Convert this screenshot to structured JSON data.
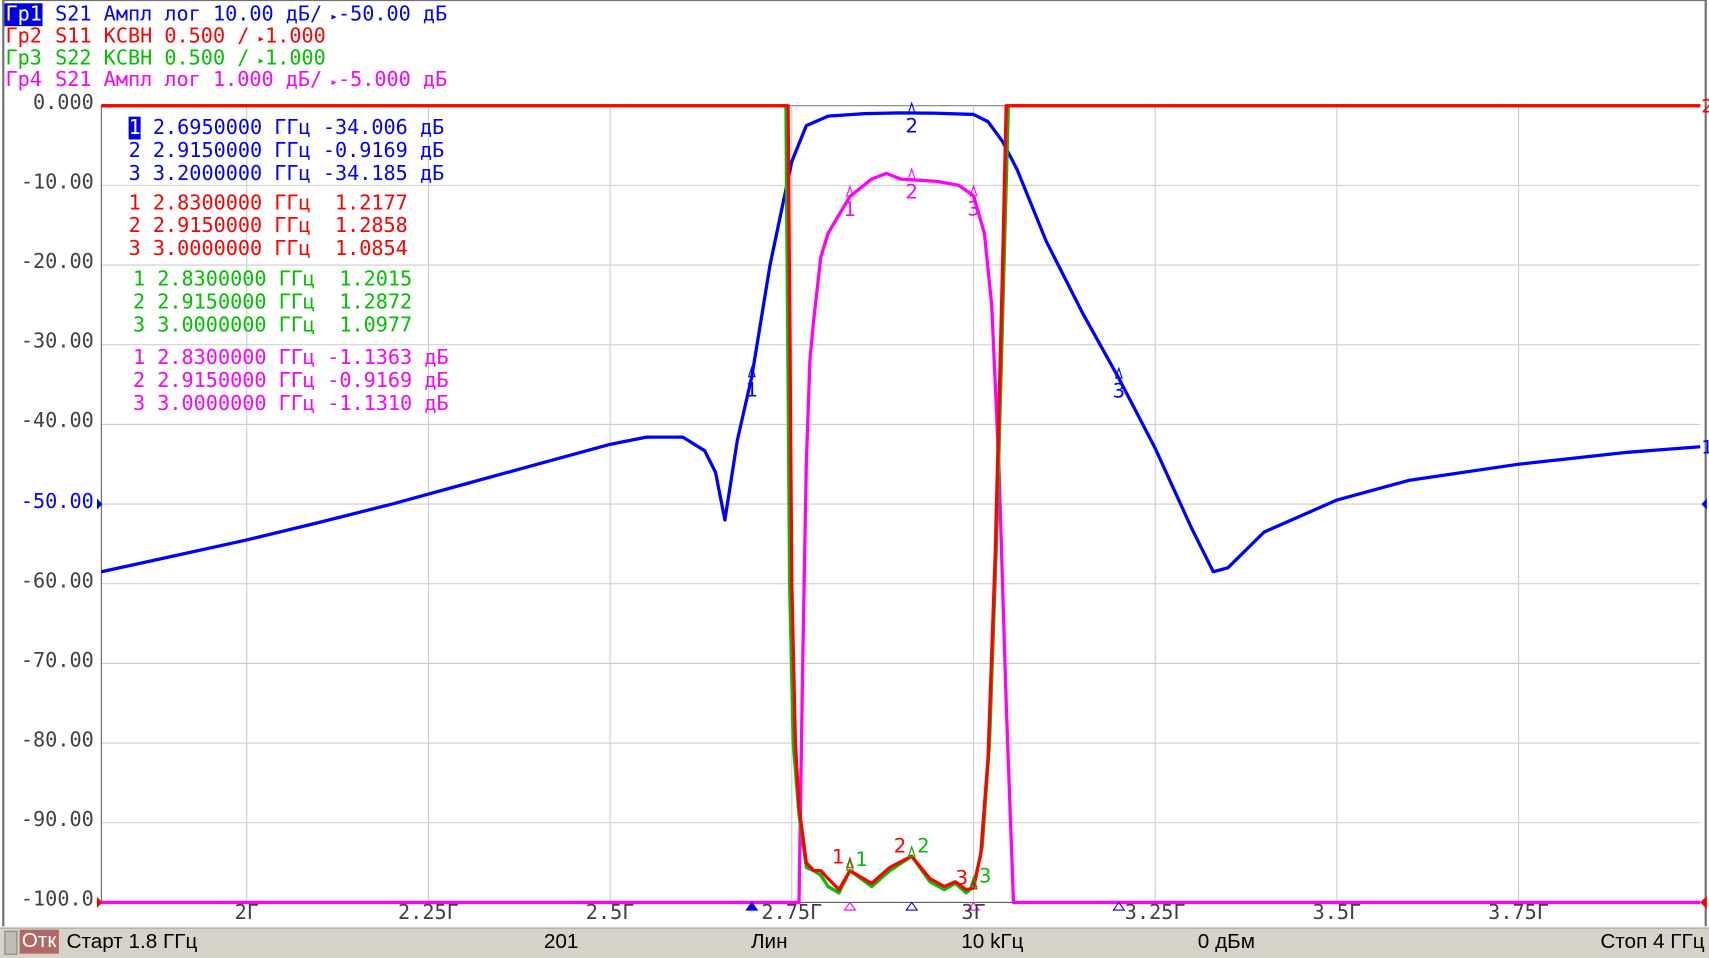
{
  "header": {
    "traces": [
      {
        "tag": "Гр1",
        "param": "S21",
        "format": "Ампл лог",
        "scale": "10.00 дБ/",
        "ref": "-50.00 дБ",
        "color": "#0000ff",
        "active": true
      },
      {
        "tag": "Гр2",
        "param": "S11",
        "format": "КСВН",
        "scale": "0.500 /",
        "ref": "1.000",
        "color": "#ff0000",
        "active": false
      },
      {
        "tag": "Гр3",
        "param": "S22",
        "format": "КСВН",
        "scale": "0.500 /",
        "ref": "1.000",
        "color": "#00c000",
        "active": false
      },
      {
        "tag": "Гр4",
        "param": "S21",
        "format": "Ампл лог",
        "scale": "1.000 дБ/",
        "ref": "-5.000 дБ",
        "color": "#ff00ff",
        "active": false
      }
    ]
  },
  "markers": {
    "tables": [
      {
        "color": "#0000ff",
        "rows": [
          {
            "n": "1",
            "freq": "2.6950000 ГГц",
            "val": "-34.006 дБ",
            "active": true
          },
          {
            "n": "2",
            "freq": "2.9150000 ГГц",
            "val": "-0.9169 дБ"
          },
          {
            "n": "3",
            "freq": "3.2000000 ГГц",
            "val": "-34.185 дБ"
          }
        ]
      },
      {
        "color": "#ff0000",
        "rows": [
          {
            "n": "1",
            "freq": "2.8300000 ГГц",
            "val": " 1.2177"
          },
          {
            "n": "2",
            "freq": "2.9150000 ГГц",
            "val": " 1.2858"
          },
          {
            "n": "3",
            "freq": "3.0000000 ГГц",
            "val": " 1.0854"
          }
        ]
      },
      {
        "color": "#00c000",
        "rows": [
          {
            "n": "1",
            "freq": "2.8300000 ГГц",
            "val": " 1.2015"
          },
          {
            "n": "2",
            "freq": "2.9150000 ГГц",
            "val": " 1.2872"
          },
          {
            "n": "3",
            "freq": "3.0000000 ГГц",
            "val": " 1.0977"
          }
        ]
      },
      {
        "color": "#ff00ff",
        "rows": [
          {
            "n": "1",
            "freq": "2.8300000 ГГц",
            "val": "-1.1363 дБ"
          },
          {
            "n": "2",
            "freq": "2.9150000 ГГц",
            "val": "-0.9169 дБ"
          },
          {
            "n": "3",
            "freq": "3.0000000 ГГц",
            "val": "-1.1310 дБ"
          }
        ]
      }
    ]
  },
  "chart_data": {
    "type": "line",
    "xlabel": "",
    "ylabel": "",
    "xlim": [
      1.8,
      4.0
    ],
    "ylim": [
      -100,
      0
    ],
    "grid": true,
    "y_ticks": [
      "0.000",
      "-10.00",
      "-20.00",
      "-30.00",
      "-40.00",
      "-50.00",
      "-60.00",
      "-70.00",
      "-80.00",
      "-90.00",
      "-100.0"
    ],
    "x_ticks": [
      {
        "v": 2.0,
        "label": "2Г"
      },
      {
        "v": 2.25,
        "label": "2.25Г"
      },
      {
        "v": 2.5,
        "label": "2.5Г"
      },
      {
        "v": 2.75,
        "label": "2.75Г"
      },
      {
        "v": 3.0,
        "label": "3Г"
      },
      {
        "v": 3.25,
        "label": "3.25Г"
      },
      {
        "v": 3.5,
        "label": "3.5Г"
      },
      {
        "v": 3.75,
        "label": "3.75Г"
      }
    ],
    "series": [
      {
        "name": "Гр1 S21",
        "color": "#0000ff",
        "ylim": [
          -100,
          0
        ],
        "x": [
          1.8,
          1.9,
          2.0,
          2.1,
          2.2,
          2.3,
          2.4,
          2.5,
          2.55,
          2.6,
          2.63,
          2.645,
          2.658,
          2.675,
          2.695,
          2.72,
          2.75,
          2.77,
          2.8,
          2.85,
          2.9,
          2.95,
          3.0,
          3.02,
          3.04,
          3.06,
          3.1,
          3.15,
          3.2,
          3.25,
          3.3,
          3.33,
          3.35,
          3.4,
          3.5,
          3.6,
          3.75,
          3.9,
          4.0
        ],
        "y": [
          -58.5,
          -56.5,
          -54.5,
          -52.3,
          -50,
          -47.5,
          -45,
          -42.5,
          -41.6,
          -41.6,
          -43.3,
          -46,
          -52,
          -42,
          -34,
          -20,
          -7,
          -2.5,
          -1.3,
          -1.0,
          -0.9,
          -0.95,
          -1.1,
          -2,
          -4.5,
          -8,
          -17,
          -26,
          -34.2,
          -43,
          -53,
          -58.5,
          -58,
          -53.5,
          -49.5,
          -47,
          -45,
          -43.5,
          -42.8
        ]
      },
      {
        "name": "Гр2 S11",
        "color": "#ff0000",
        "ylim": [
          1,
          6
        ],
        "x": [
          1.8,
          2.745,
          2.75,
          2.755,
          2.76,
          2.77,
          2.78,
          2.79,
          2.8,
          2.815,
          2.83,
          2.86,
          2.885,
          2.915,
          2.94,
          2.96,
          2.975,
          2.99,
          3.0,
          3.01,
          3.02,
          3.03,
          3.04,
          3.045,
          4.0
        ],
        "y": [
          6,
          6,
          3,
          2.0,
          1.6,
          1.25,
          1.2,
          1.2,
          1.15,
          1.08,
          1.2,
          1.12,
          1.22,
          1.29,
          1.15,
          1.1,
          1.13,
          1.08,
          1.09,
          1.3,
          1.9,
          3.2,
          5,
          6,
          6
        ]
      },
      {
        "name": "Гр3 S22",
        "color": "#00c000",
        "ylim": [
          1,
          6
        ],
        "x": [
          1.8,
          2.742,
          2.747,
          2.752,
          2.76,
          2.77,
          2.78,
          2.79,
          2.8,
          2.815,
          2.83,
          2.86,
          2.885,
          2.915,
          2.94,
          2.96,
          2.975,
          2.99,
          3.0,
          3.012,
          3.022,
          3.032,
          3.042,
          3.048,
          4.0
        ],
        "y": [
          6,
          6,
          3,
          2.0,
          1.55,
          1.22,
          1.2,
          1.17,
          1.1,
          1.06,
          1.2,
          1.1,
          1.2,
          1.29,
          1.13,
          1.08,
          1.12,
          1.06,
          1.1,
          1.35,
          2.0,
          3.3,
          5,
          6,
          6
        ]
      },
      {
        "name": "Гр4 S21",
        "color": "#ff00ff",
        "ylim": [
          -10,
          0
        ],
        "x": [
          1.8,
          2.76,
          2.765,
          2.77,
          2.775,
          2.78,
          2.79,
          2.8,
          2.83,
          2.86,
          2.88,
          2.9,
          2.95,
          2.98,
          3.0,
          3.015,
          3.025,
          3.035,
          3.045,
          3.055,
          4.0
        ],
        "y": [
          -10,
          -10,
          -7,
          -4.5,
          -3.2,
          -2.7,
          -1.9,
          -1.6,
          -1.14,
          -0.92,
          -0.85,
          -0.92,
          -0.95,
          -1.0,
          -1.13,
          -1.6,
          -2.5,
          -4.5,
          -7.5,
          -10,
          -10
        ]
      }
    ],
    "marker_points": [
      {
        "trace": 0,
        "n": "1",
        "x": 2.695,
        "y": -34.006
      },
      {
        "trace": 0,
        "n": "2",
        "x": 2.915,
        "y": -0.9169
      },
      {
        "trace": 0,
        "n": "3",
        "x": 3.2,
        "y": -34.185
      },
      {
        "trace": 1,
        "n": "1",
        "x": 2.83,
        "y": 1.2177
      },
      {
        "trace": 1,
        "n": "2",
        "x": 2.915,
        "y": 1.2858
      },
      {
        "trace": 1,
        "n": "3",
        "x": 3.0,
        "y": 1.0854
      },
      {
        "trace": 2,
        "n": "1",
        "x": 2.83,
        "y": 1.2015
      },
      {
        "trace": 2,
        "n": "2",
        "x": 2.915,
        "y": 1.2872
      },
      {
        "trace": 2,
        "n": "3",
        "x": 3.0,
        "y": 1.0977
      },
      {
        "trace": 3,
        "n": "1",
        "x": 2.83,
        "y": -1.1363
      },
      {
        "trace": 3,
        "n": "2",
        "x": 2.915,
        "y": -0.9169
      },
      {
        "trace": 3,
        "n": "3",
        "x": 3.0,
        "y": -1.131
      }
    ],
    "right_edge_labels": [
      {
        "text": "2",
        "color": "#ff0000",
        "trace": 1
      },
      {
        "text": "1",
        "color": "#0000ff",
        "trace": 0
      }
    ]
  },
  "status": {
    "mode": "Отк",
    "start": "Старт 1.8 ГГц",
    "points": "201",
    "sweep": "Лин",
    "ifbw": "10 kГц",
    "power": "0 дБм",
    "stop": "Стоп 4 ГГц"
  }
}
